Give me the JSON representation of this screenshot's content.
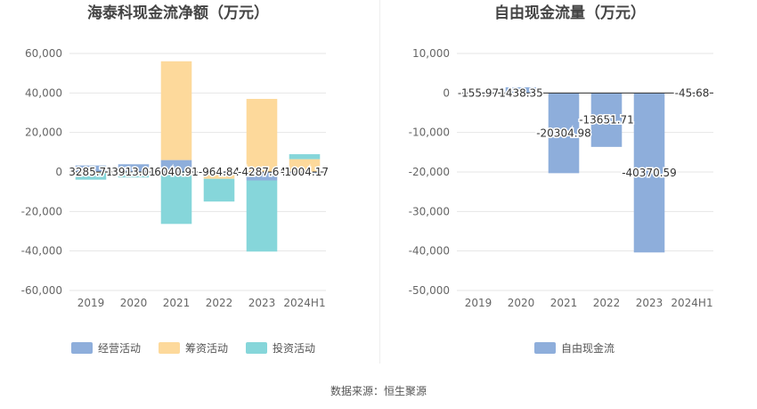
{
  "source_text": "数据来源：恒生聚源",
  "chart_data": [
    {
      "type": "bar",
      "stacked": true,
      "title": "海泰科现金流净额（万元）",
      "categories": [
        "2019",
        "2020",
        "2021",
        "2022",
        "2023",
        "2024H1"
      ],
      "ylim": [
        -60000,
        60000
      ],
      "yticks": [
        "60,000",
        "40,000",
        "20,000",
        "0",
        "-20,000",
        "-40,000",
        "-60,000"
      ],
      "ytick_values": [
        60000,
        40000,
        20000,
        0,
        -20000,
        -40000,
        -60000
      ],
      "grid": true,
      "legend_position": "bottom",
      "series": [
        {
          "name": "经营活动",
          "color": "#8eaedb",
          "values": [
            3285.71,
            3913.01,
            6040.91,
            -964.84,
            -4287.64,
            -1004.17
          ]
        },
        {
          "name": "筹资活动",
          "color": "#fdd99b",
          "values": [
            -500,
            -400,
            50000,
            -2500,
            37000,
            6500
          ]
        },
        {
          "name": "投资活动",
          "color": "#86d6da",
          "values": [
            -3400,
            -2400,
            -26300,
            -11500,
            -36000,
            2500
          ]
        }
      ],
      "data_labels": [
        "3285.71",
        "3913.01",
        "6040.91",
        "-964.84",
        "-4287.64",
        "-1004.17"
      ]
    },
    {
      "type": "bar",
      "title": "自由现金流量（万元）",
      "categories": [
        "2019",
        "2020",
        "2021",
        "2022",
        "2023",
        "2024H1"
      ],
      "ylim": [
        -50000,
        10000
      ],
      "yticks": [
        "10,000",
        "0",
        "-10,000",
        "-20,000",
        "-30,000",
        "-40,000",
        "-50,000"
      ],
      "ytick_values": [
        10000,
        0,
        -10000,
        -20000,
        -30000,
        -40000,
        -50000
      ],
      "grid": true,
      "legend_position": "bottom",
      "series": [
        {
          "name": "自由现金流",
          "color": "#8eaedb",
          "values": [
            -155.97,
            1438.35,
            -20304.98,
            -13651.71,
            -40370.59,
            -45.68
          ]
        }
      ],
      "data_labels": [
        "-155.97",
        "1438.35",
        "-20304.98",
        "-13651.71",
        "-40370.59",
        "-45.68"
      ]
    }
  ]
}
